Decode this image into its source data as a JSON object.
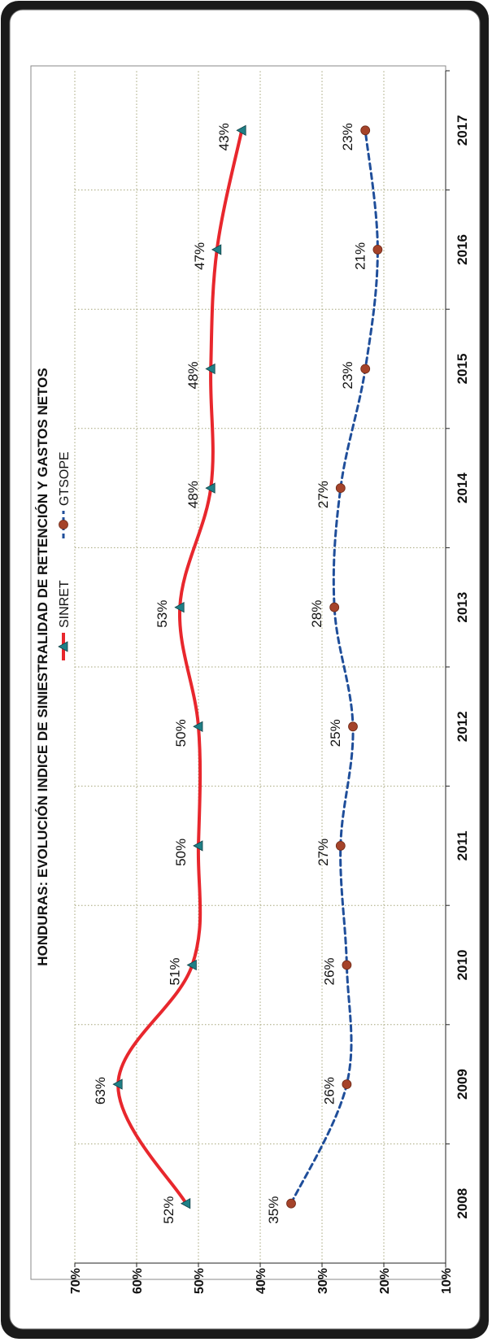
{
  "chart_data": {
    "type": "line",
    "orientation": "rotated-90-ccw",
    "title": "HONDURAS:  EVOLUCIÓN INDICE DE SINIESTRALIDAD  DE RETENCIÓN  Y GASTOS NETOS",
    "xlabel": "",
    "ylabel": "",
    "categories": [
      "2008",
      "2009",
      "2010",
      "2011",
      "2012",
      "2013",
      "2014",
      "2015",
      "2016",
      "2017"
    ],
    "ylim": [
      10,
      70
    ],
    "yticks": [
      "10%",
      "20%",
      "30%",
      "40%",
      "50%",
      "60%",
      "70%"
    ],
    "grid": true,
    "legend_position": "top",
    "series": [
      {
        "name": "SINRET",
        "values": [
          52,
          63,
          51,
          50,
          50,
          53,
          48,
          48,
          47,
          43
        ],
        "labels": [
          "52%",
          "63%",
          "51%",
          "50%",
          "50%",
          "53%",
          "48%",
          "48%",
          "47%",
          "43%"
        ],
        "color": "#e8272d",
        "marker": "triangle",
        "marker_color": "#1f7f86",
        "line_style": "solid"
      },
      {
        "name": "GTSOPE",
        "values": [
          35,
          26,
          26,
          27,
          25,
          28,
          27,
          23,
          21,
          23
        ],
        "labels": [
          "35%",
          "26%",
          "26%",
          "27%",
          "25%",
          "28%",
          "27%",
          "23%",
          "21%",
          "23%"
        ],
        "color": "#1f4e9a",
        "marker": "circle",
        "marker_color": "#a5432a",
        "line_style": "dashed"
      }
    ]
  }
}
